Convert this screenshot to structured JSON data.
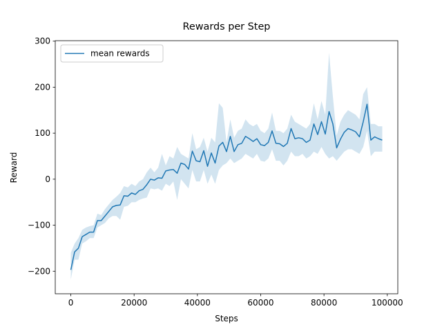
{
  "chart_data": {
    "type": "line",
    "title": "Rewards per Step",
    "x_label": "Steps",
    "y_label": "Reward",
    "x": [
      0,
      1200,
      2400,
      3600,
      4800,
      6000,
      7200,
      8400,
      9600,
      10800,
      12000,
      13200,
      14400,
      15600,
      16800,
      18000,
      19200,
      20400,
      21600,
      22800,
      24000,
      25200,
      26400,
      27600,
      28800,
      30000,
      31200,
      32400,
      33600,
      34800,
      36000,
      37200,
      38400,
      39600,
      40800,
      42000,
      43200,
      44400,
      45600,
      46800,
      48000,
      49200,
      50400,
      51600,
      52800,
      54000,
      55200,
      56400,
      57600,
      58800,
      60000,
      61200,
      62400,
      63600,
      64800,
      66000,
      67200,
      68400,
      69600,
      70800,
      72000,
      73200,
      74400,
      75600,
      76800,
      78000,
      79200,
      80400,
      81600,
      82800,
      84000,
      85200,
      86400,
      87600,
      88800,
      90000,
      91200,
      92400,
      93600,
      94800,
      96000,
      97200,
      98400
    ],
    "series": [
      {
        "name": "mean rewards",
        "color": "#1f77b4",
        "values": [
          -197,
          -158,
          -150,
          -125,
          -120,
          -115,
          -115,
          -90,
          -90,
          -80,
          -70,
          -60,
          -57,
          -56,
          -36,
          -37,
          -30,
          -33,
          -25,
          -22,
          -12,
          0,
          -2,
          3,
          2,
          18,
          20,
          21,
          13,
          35,
          32,
          22,
          61,
          40,
          38,
          62,
          28,
          57,
          35,
          72,
          80,
          60,
          93,
          60,
          75,
          78,
          93,
          88,
          82,
          88,
          75,
          73,
          80,
          105,
          78,
          77,
          71,
          78,
          110,
          88,
          90,
          88,
          80,
          85,
          120,
          97,
          125,
          98,
          147,
          120,
          68,
          87,
          102,
          110,
          107,
          103,
          92,
          125,
          163,
          85,
          92,
          88,
          85
        ],
        "lower": [
          -218,
          -175,
          -175,
          -140,
          -135,
          -128,
          -128,
          -105,
          -100,
          -95,
          -85,
          -80,
          -80,
          -88,
          -60,
          -58,
          -50,
          -50,
          -45,
          -42,
          -40,
          -20,
          -22,
          -20,
          -25,
          -10,
          -15,
          -5,
          -45,
          0,
          -10,
          -20,
          20,
          -5,
          -5,
          20,
          -10,
          10,
          -10,
          20,
          30,
          35,
          45,
          35,
          40,
          45,
          55,
          50,
          45,
          55,
          40,
          38,
          45,
          65,
          40,
          40,
          30,
          40,
          60,
          50,
          50,
          55,
          45,
          50,
          60,
          55,
          70,
          55,
          45,
          50,
          40,
          50,
          60,
          65,
          65,
          60,
          55,
          70,
          105,
          50,
          60,
          60,
          60
        ],
        "upper": [
          -160,
          -140,
          -128,
          -110,
          -105,
          -102,
          -100,
          -75,
          -78,
          -65,
          -55,
          -45,
          -38,
          -30,
          -15,
          -18,
          -10,
          -15,
          -5,
          0,
          15,
          25,
          15,
          25,
          55,
          30,
          50,
          45,
          70,
          55,
          50,
          45,
          100,
          65,
          70,
          90,
          60,
          90,
          80,
          165,
          155,
          80,
          130,
          90,
          105,
          110,
          130,
          120,
          115,
          120,
          105,
          100,
          110,
          145,
          105,
          105,
          100,
          110,
          140,
          125,
          120,
          115,
          110,
          120,
          165,
          130,
          170,
          140,
          275,
          180,
          95,
          125,
          140,
          150,
          145,
          140,
          130,
          185,
          200,
          120,
          120,
          115,
          115
        ]
      }
    ],
    "xlim": [
      -4920,
      103320
    ],
    "xticks": [
      0,
      20000,
      40000,
      60000,
      80000,
      100000
    ],
    "ylim": [
      -249,
      301
    ],
    "yticks": [
      {
        "value": -200,
        "label": "−200"
      },
      {
        "value": -100,
        "label": "−100"
      },
      0,
      100,
      200,
      300
    ],
    "legend": "upper left",
    "grid": false
  }
}
